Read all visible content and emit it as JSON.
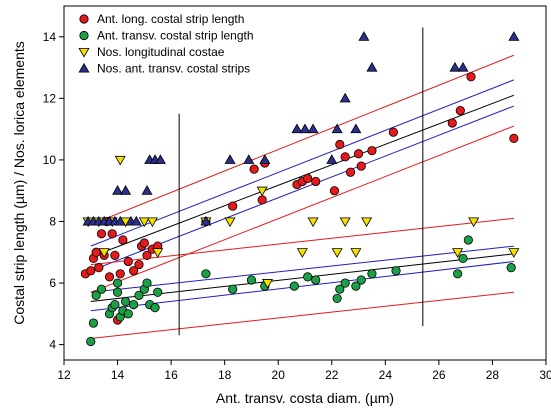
{
  "chart_data": {
    "type": "scatter",
    "xlabel": "Ant. transv. costa diam. (µm)",
    "ylabel": "Costal strip length (µm) / Nos. lorica elements",
    "xlim": [
      12,
      30
    ],
    "ylim": [
      3.5,
      15
    ],
    "xticks": [
      12,
      14,
      16,
      18,
      20,
      22,
      24,
      26,
      28,
      30
    ],
    "xtick_labels": [
      "12",
      "14",
      "16",
      "18",
      "20",
      "22",
      "24",
      "26",
      "28",
      "30"
    ],
    "yticks": [
      4,
      6,
      8,
      10,
      12,
      14
    ],
    "ytick_labels": [
      "4",
      "6",
      "8",
      "10",
      "12",
      "14"
    ],
    "grid": false,
    "legend_position": "top-left",
    "vertical_lines_x": [
      16.3,
      25.4
    ],
    "series": [
      {
        "name": "Ant. long. costal strip length",
        "marker": "circle",
        "color": "#e41a1c",
        "points": [
          [
            12.8,
            6.3
          ],
          [
            13.0,
            6.4
          ],
          [
            13.1,
            6.8
          ],
          [
            13.2,
            7.0
          ],
          [
            13.3,
            6.5
          ],
          [
            13.4,
            7.6
          ],
          [
            13.5,
            6.9
          ],
          [
            13.6,
            8.0
          ],
          [
            13.7,
            6.2
          ],
          [
            13.8,
            7.6
          ],
          [
            13.9,
            6.9
          ],
          [
            14.0,
            4.8
          ],
          [
            14.1,
            6.3
          ],
          [
            14.2,
            7.4
          ],
          [
            14.4,
            6.7
          ],
          [
            14.6,
            6.4
          ],
          [
            14.8,
            6.6
          ],
          [
            14.9,
            7.2
          ],
          [
            15.0,
            7.3
          ],
          [
            15.1,
            6.9
          ],
          [
            15.3,
            7.1
          ],
          [
            15.5,
            7.2
          ],
          [
            17.3,
            8.0
          ],
          [
            18.3,
            8.5
          ],
          [
            19.1,
            9.7
          ],
          [
            19.4,
            8.7
          ],
          [
            19.5,
            9.9
          ],
          [
            20.7,
            9.2
          ],
          [
            20.9,
            9.3
          ],
          [
            21.1,
            9.4
          ],
          [
            21.4,
            9.3
          ],
          [
            22.1,
            9.0
          ],
          [
            22.3,
            10.5
          ],
          [
            22.5,
            10.1
          ],
          [
            22.7,
            9.6
          ],
          [
            23.0,
            10.2
          ],
          [
            23.1,
            9.8
          ],
          [
            23.5,
            10.3
          ],
          [
            24.3,
            10.9
          ],
          [
            26.5,
            11.2
          ],
          [
            26.8,
            11.6
          ],
          [
            27.2,
            12.7
          ],
          [
            28.8,
            10.7
          ]
        ]
      },
      {
        "name": "Ant. transv. costal strip length",
        "marker": "circle",
        "color": "#1ba048",
        "points": [
          [
            13.0,
            4.1
          ],
          [
            13.1,
            4.7
          ],
          [
            13.2,
            5.6
          ],
          [
            13.4,
            5.8
          ],
          [
            13.7,
            5.0
          ],
          [
            13.8,
            5.2
          ],
          [
            13.9,
            5.3
          ],
          [
            14.0,
            5.7
          ],
          [
            14.0,
            6.0
          ],
          [
            14.1,
            4.9
          ],
          [
            14.2,
            5.1
          ],
          [
            14.3,
            5.4
          ],
          [
            14.4,
            5.0
          ],
          [
            14.6,
            5.3
          ],
          [
            14.8,
            5.6
          ],
          [
            15.0,
            5.8
          ],
          [
            15.1,
            6.0
          ],
          [
            15.2,
            5.3
          ],
          [
            15.4,
            5.2
          ],
          [
            15.5,
            5.7
          ],
          [
            17.3,
            6.3
          ],
          [
            18.3,
            5.8
          ],
          [
            19.0,
            6.1
          ],
          [
            19.5,
            5.9
          ],
          [
            20.6,
            5.9
          ],
          [
            21.1,
            6.2
          ],
          [
            21.4,
            6.1
          ],
          [
            22.2,
            5.5
          ],
          [
            22.3,
            5.8
          ],
          [
            22.5,
            6.0
          ],
          [
            22.9,
            5.9
          ],
          [
            23.1,
            6.1
          ],
          [
            23.5,
            6.3
          ],
          [
            24.4,
            6.4
          ],
          [
            26.7,
            6.3
          ],
          [
            26.9,
            6.8
          ],
          [
            27.1,
            7.4
          ],
          [
            28.7,
            6.5
          ]
        ]
      },
      {
        "name": "Nos. longitudinal costae",
        "marker": "triangle-down",
        "color": "#f5e000",
        "points": [
          [
            12.9,
            8.0
          ],
          [
            13.3,
            8.0
          ],
          [
            13.5,
            7.0
          ],
          [
            13.8,
            8.0
          ],
          [
            14.1,
            10.0
          ],
          [
            14.3,
            8.0
          ],
          [
            15.0,
            8.0
          ],
          [
            15.3,
            8.0
          ],
          [
            15.5,
            7.0
          ],
          [
            17.3,
            8.0
          ],
          [
            18.2,
            8.0
          ],
          [
            19.4,
            9.0
          ],
          [
            19.6,
            6.0
          ],
          [
            20.9,
            7.0
          ],
          [
            21.3,
            8.0
          ],
          [
            22.2,
            7.0
          ],
          [
            22.5,
            8.0
          ],
          [
            22.9,
            7.0
          ],
          [
            23.3,
            8.0
          ],
          [
            26.7,
            7.0
          ],
          [
            27.3,
            8.0
          ],
          [
            28.8,
            7.0
          ]
        ]
      },
      {
        "name": "Nos. ant. transv. costal strips",
        "marker": "triangle-up",
        "color": "#2a2f8c",
        "points": [
          [
            12.9,
            8.0
          ],
          [
            13.1,
            8.0
          ],
          [
            13.3,
            8.0
          ],
          [
            13.5,
            8.0
          ],
          [
            13.7,
            8.0
          ],
          [
            13.9,
            8.0
          ],
          [
            14.0,
            9.0
          ],
          [
            14.1,
            8.0
          ],
          [
            14.3,
            9.0
          ],
          [
            14.5,
            8.0
          ],
          [
            14.7,
            8.0
          ],
          [
            15.1,
            9.0
          ],
          [
            15.2,
            10.0
          ],
          [
            15.4,
            10.0
          ],
          [
            15.6,
            10.0
          ],
          [
            17.3,
            8.0
          ],
          [
            18.2,
            10.0
          ],
          [
            18.9,
            10.0
          ],
          [
            19.5,
            10.0
          ],
          [
            20.7,
            11.0
          ],
          [
            21.0,
            11.0
          ],
          [
            21.3,
            11.0
          ],
          [
            22.0,
            10.0
          ],
          [
            22.2,
            11.0
          ],
          [
            22.5,
            12.0
          ],
          [
            22.9,
            11.0
          ],
          [
            23.2,
            14.0
          ],
          [
            23.5,
            13.0
          ],
          [
            26.6,
            13.0
          ],
          [
            26.9,
            13.0
          ],
          [
            28.8,
            14.0
          ]
        ]
      }
    ],
    "regression_lines": [
      {
        "role": "fit",
        "color": "#000000",
        "x": [
          13.0,
          28.8
        ],
        "y": [
          6.85,
          12.1
        ]
      },
      {
        "role": "ci",
        "color": "#1f1fbf",
        "x": [
          13.0,
          28.8
        ],
        "y": [
          6.4,
          11.75
        ]
      },
      {
        "role": "ci",
        "color": "#1f1fbf",
        "x": [
          13.0,
          28.8
        ],
        "y": [
          7.2,
          12.6
        ]
      },
      {
        "role": "pi",
        "color": "#e41a1c",
        "x": [
          13.0,
          28.8
        ],
        "y": [
          5.7,
          11.1
        ]
      },
      {
        "role": "pi",
        "color": "#e41a1c",
        "x": [
          13.0,
          28.8
        ],
        "y": [
          7.9,
          13.4
        ]
      },
      {
        "role": "fit",
        "color": "#000000",
        "x": [
          13.0,
          28.8
        ],
        "y": [
          5.4,
          6.95
        ]
      },
      {
        "role": "ci",
        "color": "#1f1fbf",
        "x": [
          13.0,
          28.8
        ],
        "y": [
          5.1,
          6.7
        ]
      },
      {
        "role": "ci",
        "color": "#1f1fbf",
        "x": [
          13.0,
          28.8
        ],
        "y": [
          5.7,
          7.2
        ]
      },
      {
        "role": "pi",
        "color": "#e41a1c",
        "x": [
          13.0,
          28.8
        ],
        "y": [
          4.2,
          5.7
        ]
      },
      {
        "role": "pi",
        "color": "#e41a1c",
        "x": [
          13.0,
          28.8
        ],
        "y": [
          6.6,
          8.1
        ]
      }
    ]
  }
}
